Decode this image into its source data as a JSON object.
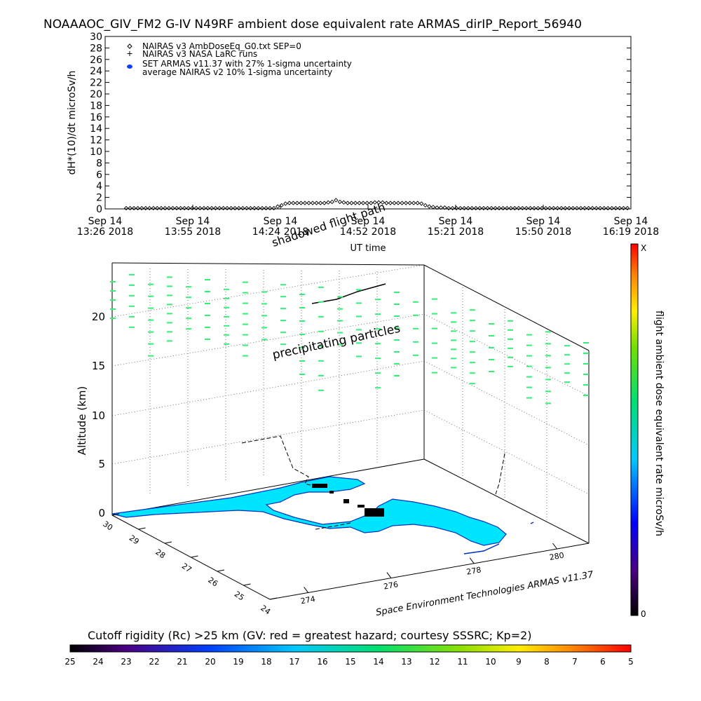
{
  "page": {
    "title": "NOAAAOC_GIV_FM2 G-IV    N49RF  ambient dose equivalent rate ARMAS_dirIP_Report_56940",
    "credit": "Space Environment Technologies ARMAS v11.37"
  },
  "chart_data": [
    {
      "type": "scatter",
      "ylabel": "dH*(10)/dt microSv/h",
      "xlabel": "UT time",
      "ylim": [
        0,
        30
      ],
      "y_ticks": [
        0,
        2,
        4,
        6,
        8,
        10,
        12,
        14,
        16,
        18,
        20,
        22,
        24,
        26,
        28,
        30
      ],
      "x_ticks": [
        {
          "line1": "Sep 14",
          "line2": "13:26 2018"
        },
        {
          "line1": "Sep 14",
          "line2": "13:55 2018"
        },
        {
          "line1": "Sep 14",
          "line2": "14:24 2018"
        },
        {
          "line1": "Sep 14",
          "line2": "14:52 2018"
        },
        {
          "line1": "Sep 14",
          "line2": "15:21 2018"
        },
        {
          "line1": "Sep 14",
          "line2": "15:50 2018"
        },
        {
          "line1": "Sep 14",
          "line2": "16:19 2018"
        }
      ],
      "legend": [
        {
          "symbol": "diamond",
          "label": "NAIRAS v3 AmbDoseEq_G0.txt SEP=0"
        },
        {
          "symbol": "plus",
          "label": "NAIRAS v3 NASA LaRC runs"
        },
        {
          "symbol": "filled-oval",
          "label": "SET ARMAS v11.37 with 27% 1-sigma uncertainty"
        },
        {
          "symbol": "none",
          "label": "average NAIRAS v2 10% 1-sigma uncertainty"
        }
      ],
      "legend_position": "top-left",
      "series": [
        {
          "name": "NAIRAS v3 AmbDoseEq_G0.txt SEP=0",
          "marker": "diamond",
          "values": [
            0,
            0,
            0,
            0,
            0,
            0,
            0,
            0,
            0,
            0,
            0,
            0,
            0,
            0,
            0,
            0,
            0,
            0,
            0,
            0,
            0,
            0,
            0,
            0,
            0,
            0,
            0,
            0,
            0,
            0,
            0,
            0,
            0,
            0,
            0,
            0,
            0,
            0,
            0,
            0.3,
            0.5,
            0.8,
            0.9,
            0.9,
            0.9,
            0.9,
            0.9,
            0.9,
            0.9,
            0.9,
            0.9,
            0.9,
            1.0,
            1.1,
            1.4,
            1.1,
            1.0,
            0.9,
            0.9,
            0.9,
            0.9,
            0.9,
            0.9,
            0.9,
            1.0,
            1.0,
            1.0,
            0.9,
            0.9,
            0.9,
            0.9,
            0.9,
            0.9,
            0.9,
            0.9,
            0.9,
            0.8,
            0.5,
            0.3,
            0.2,
            0.1,
            0.1,
            0.1,
            0,
            0,
            0,
            0,
            0,
            0,
            0,
            0,
            0,
            0,
            0,
            0,
            0,
            0,
            0,
            0,
            0,
            0,
            0,
            0,
            0,
            0,
            0,
            0,
            0,
            0,
            0,
            0,
            0,
            0,
            0,
            0,
            0,
            0,
            0,
            0,
            0,
            0,
            0,
            0,
            0,
            0,
            0,
            0,
            0,
            0,
            0
          ]
        }
      ]
    },
    {
      "type": "scatter",
      "zlabel": "Altitude (km)",
      "z_ticks": [
        "0",
        "5",
        "10",
        "15",
        "20"
      ],
      "lat_ticks": [
        "30",
        "29",
        "28",
        "27",
        "26",
        "25",
        "24"
      ],
      "lon_ticks": [
        "274",
        "276",
        "278",
        "280"
      ],
      "annotations": [
        "shadowed flight path",
        "precipitating particles"
      ],
      "colorbar": {
        "label": "flight ambient dose equivalent rate microSv/h",
        "top_label": "X",
        "bottom_label": "0"
      },
      "map_fill_color": "#00e5ff",
      "particle_color": "#33ee77"
    },
    {
      "type": "heatmap",
      "title": "Cutoff rigidity (Rc) >25 km (GV: red = greatest hazard; courtesy SSSRC; Kp=2)",
      "ticks": [
        "25",
        "24",
        "23",
        "22",
        "21",
        "20",
        "19",
        "18",
        "17",
        "16",
        "15",
        "14",
        "13",
        "12",
        "11",
        "10",
        "9",
        "8",
        "7",
        "6",
        "5"
      ]
    }
  ]
}
